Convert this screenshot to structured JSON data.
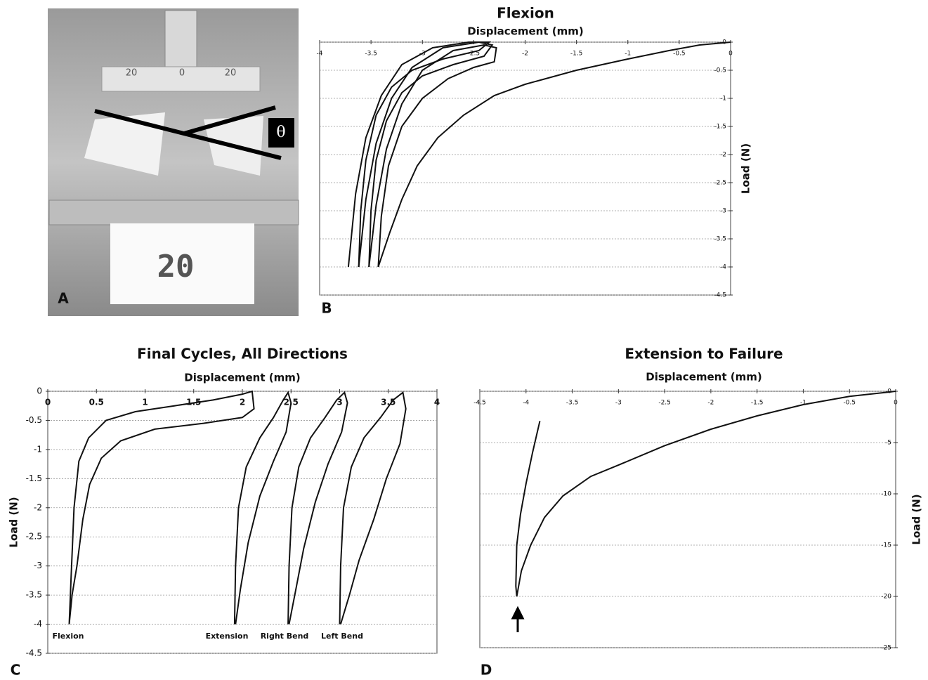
{
  "photo": {
    "label": "A",
    "angle": "θ",
    "card": "20",
    "scale": [
      "20",
      "0",
      "20"
    ]
  },
  "chart_data": [
    {
      "type": "line",
      "label": "B",
      "title": "Flexion",
      "x_label": "Displacement (mm)",
      "y_label": "Load (N)",
      "xlim": [
        -4,
        0
      ],
      "xticks": [
        -4,
        -3.5,
        -3,
        -2.5,
        -2,
        -1.5,
        -1,
        -0.5,
        0
      ],
      "ylim": [
        -4.5,
        0
      ],
      "yticks": [
        0,
        -0.5,
        -1,
        -1.5,
        -2,
        -2.5,
        -3,
        -3.5,
        -4,
        -4.5
      ],
      "grid": true,
      "series": [
        {
          "color": "#111111",
          "x": [
            0,
            -0.3,
            -0.6,
            -1,
            -1.5,
            -2,
            -2.3,
            -2.6,
            -2.85,
            -3.05,
            -3.2,
            -3.32,
            -3.43
          ],
          "values": [
            0,
            -0.05,
            -0.15,
            -0.3,
            -0.5,
            -0.75,
            -0.95,
            -1.3,
            -1.7,
            -2.2,
            -2.8,
            -3.4,
            -4
          ]
        },
        {
          "color": "#111111",
          "x": [
            -3.43,
            -3.4,
            -3.33,
            -3.2,
            -3.0,
            -2.75,
            -2.5,
            -2.3,
            -2.28,
            -2.4,
            -2.7,
            -3.0,
            -3.2,
            -3.35,
            -3.45,
            -3.52
          ],
          "values": [
            -4,
            -3.1,
            -2.2,
            -1.5,
            -1.0,
            -0.65,
            -0.45,
            -0.35,
            -0.1,
            -0.05,
            -0.15,
            -0.5,
            -1.1,
            -1.9,
            -2.9,
            -4
          ]
        },
        {
          "color": "#111111",
          "x": [
            -3.52,
            -3.5,
            -3.45,
            -3.35,
            -3.2,
            -3.0,
            -2.7,
            -2.4,
            -2.32,
            -2.45,
            -2.8,
            -3.1,
            -3.3,
            -3.45,
            -3.55,
            -3.62
          ],
          "values": [
            -4,
            -3.0,
            -2.1,
            -1.4,
            -0.9,
            -0.6,
            -0.4,
            -0.25,
            -0.05,
            0,
            -0.1,
            -0.45,
            -1.0,
            -1.8,
            -2.8,
            -4
          ]
        },
        {
          "color": "#111111",
          "x": [
            -3.62,
            -3.6,
            -3.55,
            -3.45,
            -3.3,
            -3.1,
            -2.8,
            -2.45,
            -2.35,
            -2.55,
            -2.9,
            -3.2,
            -3.4,
            -3.55,
            -3.65,
            -3.72
          ],
          "values": [
            -4,
            -3.0,
            -2.1,
            -1.3,
            -0.8,
            -0.5,
            -0.3,
            -0.15,
            0,
            0,
            -0.1,
            -0.4,
            -0.95,
            -1.7,
            -2.7,
            -4
          ]
        }
      ]
    },
    {
      "type": "line",
      "label": "C",
      "title": "Final Cycles, All Directions",
      "x_label": "Displacement (mm)",
      "y_label": "Load (N)",
      "xlim": [
        0,
        4
      ],
      "xticks": [
        0,
        0.5,
        1,
        1.5,
        2,
        2.5,
        3,
        3.5,
        4
      ],
      "ylim": [
        -4.5,
        0
      ],
      "yticks": [
        0,
        -0.5,
        -1,
        -1.5,
        -2,
        -2.5,
        -3,
        -3.5,
        -4,
        -4.5
      ],
      "grid": true,
      "annotations": [
        "Flexion",
        "Extension",
        "Right Bend",
        "Left Bend"
      ],
      "series": [
        {
          "color": "#111111",
          "x": [
            0.22,
            0.24,
            0.27,
            0.32,
            0.42,
            0.6,
            0.9,
            1.3,
            1.7,
            2.0,
            2.1,
            2.12,
            2.0,
            1.6,
            1.1,
            0.75,
            0.55,
            0.43,
            0.36,
            0.3,
            0.25,
            0.22
          ],
          "values": [
            -4,
            -3.2,
            -2.0,
            -1.2,
            -0.8,
            -0.5,
            -0.35,
            -0.25,
            -0.15,
            -0.05,
            0,
            -0.3,
            -0.45,
            -0.55,
            -0.65,
            -0.85,
            -1.15,
            -1.6,
            -2.2,
            -3.0,
            -3.5,
            -4
          ]
        },
        {
          "color": "#111111",
          "x": [
            1.92,
            1.93,
            1.96,
            2.04,
            2.18,
            2.32,
            2.42,
            2.47,
            2.5,
            2.45,
            2.32,
            2.18,
            2.06,
            1.98,
            1.93
          ],
          "values": [
            -4,
            -3.0,
            -2.0,
            -1.3,
            -0.8,
            -0.45,
            -0.15,
            -0.02,
            -0.2,
            -0.7,
            -1.2,
            -1.8,
            -2.6,
            -3.4,
            -4
          ]
        },
        {
          "color": "#111111",
          "x": [
            2.47,
            2.48,
            2.51,
            2.58,
            2.7,
            2.85,
            2.97,
            3.05,
            3.08,
            3.02,
            2.88,
            2.75,
            2.63,
            2.55,
            2.48
          ],
          "values": [
            -4,
            -3.0,
            -2.0,
            -1.3,
            -0.8,
            -0.45,
            -0.15,
            -0.02,
            -0.2,
            -0.7,
            -1.25,
            -1.9,
            -2.7,
            -3.4,
            -4
          ]
        },
        {
          "color": "#111111",
          "x": [
            3.0,
            3.01,
            3.04,
            3.12,
            3.25,
            3.42,
            3.55,
            3.65,
            3.68,
            3.62,
            3.48,
            3.35,
            3.2,
            3.1,
            3.01
          ],
          "values": [
            -4,
            -3.0,
            -2.0,
            -1.3,
            -0.8,
            -0.45,
            -0.15,
            -0.02,
            -0.3,
            -0.9,
            -1.5,
            -2.2,
            -2.9,
            -3.5,
            -4
          ]
        }
      ]
    },
    {
      "type": "line",
      "label": "D",
      "title": "Extension to Failure",
      "x_label": "Displacement (mm)",
      "y_label": "Load (N)",
      "xlim": [
        -4.5,
        0
      ],
      "xticks": [
        -4.5,
        -4,
        -3.5,
        -3,
        -2.5,
        -2,
        -1.5,
        -1,
        -0.5,
        0
      ],
      "ylim": [
        -25,
        0
      ],
      "yticks": [
        0,
        -5,
        -10,
        -15,
        -20,
        -25
      ],
      "grid": true,
      "series": [
        {
          "color": "#111111",
          "x": [
            0,
            -0.5,
            -1,
            -1.5,
            -2,
            -2.5,
            -3,
            -3.3,
            -3.6,
            -3.8,
            -3.95,
            -4.05,
            -4.1,
            -4.11,
            -4.1,
            -4.06,
            -4.0,
            -3.93,
            -3.85
          ],
          "values": [
            0,
            -0.5,
            -1.3,
            -2.4,
            -3.7,
            -5.3,
            -7.2,
            -8.3,
            -10.2,
            -12.3,
            -15,
            -17.5,
            -20,
            -19,
            -15,
            -12,
            -9,
            -6,
            -2.9
          ]
        }
      ]
    }
  ]
}
